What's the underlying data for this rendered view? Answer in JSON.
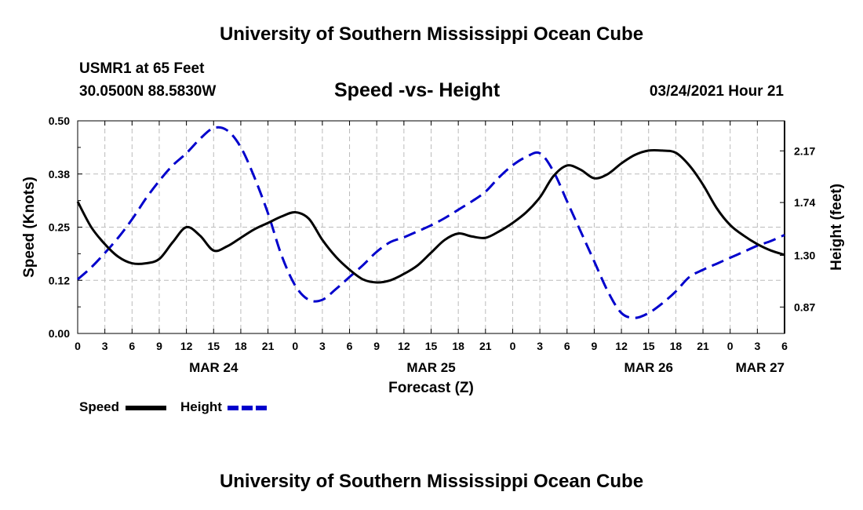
{
  "page": {
    "title_top": "University of Southern Mississippi Ocean Cube",
    "title_bottom": "University of Southern Mississippi Ocean Cube",
    "station": "USMR1 at 65 Feet",
    "coords": "30.0500N 88.5830W",
    "subtitle": "Speed -vs- Height",
    "datetime": "03/24/2021 Hour 21"
  },
  "legend": {
    "speed_label": "Speed",
    "height_label": "Height"
  },
  "colors": {
    "speed": "#000000",
    "height": "#0000cc",
    "grid": "#bbbbbb"
  },
  "chart_data": {
    "type": "line",
    "title": "Speed -vs- Height",
    "xlabel": "Forecast (Z)",
    "ylabel": "Speed (Knots)",
    "y2label": "Height (feet)",
    "x_unit": "hours from 00Z MAR 24",
    "xlim": [
      0,
      78
    ],
    "ylim": [
      0,
      0.5
    ],
    "y2lim": [
      0.65,
      2.42
    ],
    "x_tick_labels": [
      "0",
      "3",
      "6",
      "9",
      "12",
      "15",
      "18",
      "21",
      "0",
      "3",
      "6",
      "9",
      "12",
      "15",
      "18",
      "21",
      "0",
      "3",
      "6",
      "9",
      "12",
      "15",
      "18",
      "21",
      "0",
      "3",
      "6"
    ],
    "date_labels": [
      {
        "hour": 15,
        "label": "MAR 24"
      },
      {
        "hour": 39,
        "label": "MAR 25"
      },
      {
        "hour": 63,
        "label": "MAR 26"
      },
      {
        "hour": 78,
        "label": "MAR 27"
      }
    ],
    "y_ticks": [
      "0.00",
      "0.12",
      "0.25",
      "0.38",
      "0.50"
    ],
    "y_tick_values": [
      0,
      0.125,
      0.25,
      0.375,
      0.5
    ],
    "y2_ticks": [
      "0.87",
      "1.30",
      "1.74",
      "2.17"
    ],
    "y2_tick_values": [
      0.87,
      1.3,
      1.74,
      2.17
    ],
    "series": [
      {
        "name": "Speed",
        "axis": "left",
        "x": [
          0,
          1.5,
          3,
          4.5,
          6,
          7.5,
          9,
          10.5,
          12,
          13.5,
          15,
          16.5,
          18,
          19.5,
          21,
          22.5,
          24,
          25.5,
          27,
          28.5,
          30,
          31.5,
          33,
          34.5,
          36,
          37.5,
          39,
          40.5,
          42,
          43.5,
          45,
          46.5,
          48,
          49.5,
          51,
          52.5,
          54,
          55.5,
          57,
          58.5,
          60,
          61.5,
          63,
          64.5,
          66,
          67.5,
          69,
          70.5,
          72,
          73.5,
          75,
          76.5,
          78
        ],
        "values": [
          0.31,
          0.25,
          0.21,
          0.18,
          0.165,
          0.165,
          0.175,
          0.215,
          0.25,
          0.23,
          0.195,
          0.205,
          0.225,
          0.245,
          0.26,
          0.275,
          0.285,
          0.27,
          0.22,
          0.18,
          0.15,
          0.127,
          0.12,
          0.125,
          0.14,
          0.16,
          0.19,
          0.22,
          0.235,
          0.228,
          0.225,
          0.24,
          0.26,
          0.285,
          0.32,
          0.37,
          0.395,
          0.385,
          0.365,
          0.375,
          0.4,
          0.42,
          0.43,
          0.43,
          0.425,
          0.395,
          0.35,
          0.295,
          0.255,
          0.23,
          0.21,
          0.195,
          0.185
        ]
      },
      {
        "name": "Height",
        "axis": "right",
        "x": [
          0,
          1.5,
          3,
          4.5,
          6,
          7.5,
          9,
          10.5,
          12,
          13.5,
          15,
          16.5,
          18,
          19.5,
          21,
          22.5,
          24,
          25.5,
          27,
          28.5,
          30,
          31.5,
          33,
          34.5,
          36,
          37.5,
          39,
          40.5,
          42,
          43.5,
          45,
          46.5,
          48,
          49.5,
          51,
          52.5,
          54,
          55.5,
          57,
          58.5,
          60,
          61.5,
          63,
          64.5,
          66,
          67.5,
          69,
          70.5,
          72,
          73.5,
          75,
          76.5,
          78
        ],
        "values": [
          1.1,
          1.2,
          1.32,
          1.45,
          1.6,
          1.77,
          1.92,
          2.05,
          2.15,
          2.27,
          2.36,
          2.34,
          2.2,
          1.95,
          1.65,
          1.3,
          1.05,
          0.93,
          0.93,
          1.02,
          1.12,
          1.22,
          1.33,
          1.41,
          1.45,
          1.5,
          1.55,
          1.61,
          1.68,
          1.75,
          1.83,
          1.95,
          2.05,
          2.12,
          2.15,
          2.0,
          1.75,
          1.5,
          1.25,
          1.0,
          0.82,
          0.78,
          0.82,
          0.9,
          1.0,
          1.12,
          1.18,
          1.23,
          1.28,
          1.33,
          1.38,
          1.42,
          1.47
        ]
      }
    ]
  }
}
